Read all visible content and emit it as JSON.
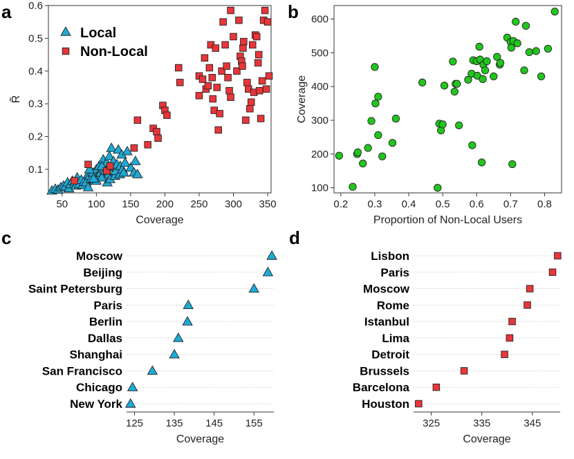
{
  "colors": {
    "local": "#1eaad6",
    "nonlocal": "#e8363a",
    "users": "#22c51e",
    "stroke": "#222222"
  },
  "chart_data": [
    {
      "panel": "a",
      "type": "scatter",
      "xlabel": "Coverage",
      "ylabel": "R̃",
      "xlim": [
        30,
        355
      ],
      "ylim": [
        0.028,
        0.6
      ],
      "xticks": [
        50,
        100,
        150,
        200,
        250,
        300,
        350
      ],
      "yticks": [
        0.1,
        0.2,
        0.3,
        0.4,
        0.5,
        0.6
      ],
      "legend_position": "top-left",
      "series": [
        {
          "name": "Local",
          "marker": "triangle",
          "points": [
            [
              35,
              0.035
            ],
            [
              40,
              0.04
            ],
            [
              44,
              0.038
            ],
            [
              48,
              0.045
            ],
            [
              52,
              0.05
            ],
            [
              55,
              0.048
            ],
            [
              58,
              0.06
            ],
            [
              60,
              0.042
            ],
            [
              62,
              0.055
            ],
            [
              65,
              0.065
            ],
            [
              68,
              0.06
            ],
            [
              70,
              0.05
            ],
            [
              72,
              0.075
            ],
            [
              75,
              0.055
            ],
            [
              78,
              0.068
            ],
            [
              80,
              0.052
            ],
            [
              82,
              0.062
            ],
            [
              85,
              0.06
            ],
            [
              88,
              0.085
            ],
            [
              90,
              0.08
            ],
            [
              92,
              0.07
            ],
            [
              95,
              0.09
            ],
            [
              97,
              0.065
            ],
            [
              100,
              0.1
            ],
            [
              102,
              0.08
            ],
            [
              104,
              0.11
            ],
            [
              106,
              0.09
            ],
            [
              108,
              0.075
            ],
            [
              110,
              0.13
            ],
            [
              111,
              0.1
            ],
            [
              113,
              0.095
            ],
            [
              115,
              0.12
            ],
            [
              116,
              0.06
            ],
            [
              118,
              0.085
            ],
            [
              119,
              0.14
            ],
            [
              120,
              0.07
            ],
            [
              122,
              0.165
            ],
            [
              124,
              0.105
            ],
            [
              125,
              0.125
            ],
            [
              127,
              0.08
            ],
            [
              128,
              0.095
            ],
            [
              130,
              0.115
            ],
            [
              132,
              0.16
            ],
            [
              134,
              0.085
            ],
            [
              135,
              0.11
            ],
            [
              137,
              0.145
            ],
            [
              138,
              0.1
            ],
            [
              140,
              0.09
            ],
            [
              142,
              0.12
            ],
            [
              145,
              0.155
            ],
            [
              150,
              0.105
            ],
            [
              155,
              0.09
            ],
            [
              157,
              0.125
            ],
            [
              160,
              0.085
            ],
            [
              88,
              0.045
            ],
            [
              90,
              0.1
            ],
            [
              100,
              0.065
            ],
            [
              108,
              0.11
            ],
            [
              118,
              0.108
            ],
            [
              96,
              0.072
            ]
          ]
        },
        {
          "name": "Non-Local",
          "marker": "square",
          "points": [
            [
              68,
              0.065
            ],
            [
              88,
              0.115
            ],
            [
              115,
              0.095
            ],
            [
              120,
              0.11
            ],
            [
              155,
              0.165
            ],
            [
              160,
              0.25
            ],
            [
              175,
              0.175
            ],
            [
              183,
              0.225
            ],
            [
              188,
              0.215
            ],
            [
              190,
              0.195
            ],
            [
              197,
              0.295
            ],
            [
              200,
              0.28
            ],
            [
              203,
              0.265
            ],
            [
              220,
              0.41
            ],
            [
              222,
              0.365
            ],
            [
              250,
              0.385
            ],
            [
              250,
              0.325
            ],
            [
              255,
              0.375
            ],
            [
              258,
              0.44
            ],
            [
              260,
              0.345
            ],
            [
              263,
              0.355
            ],
            [
              265,
              0.41
            ],
            [
              267,
              0.48
            ],
            [
              269,
              0.38
            ],
            [
              270,
              0.315
            ],
            [
              272,
              0.28
            ],
            [
              274,
              0.47
            ],
            [
              276,
              0.35
            ],
            [
              278,
              0.22
            ],
            [
              280,
              0.27
            ],
            [
              283,
              0.4
            ],
            [
              285,
              0.55
            ],
            [
              288,
              0.48
            ],
            [
              290,
              0.415
            ],
            [
              292,
              0.38
            ],
            [
              294,
              0.34
            ],
            [
              296,
              0.32
            ],
            [
              296,
              0.585
            ],
            [
              300,
              0.505
            ],
            [
              305,
              0.4
            ],
            [
              308,
              0.555
            ],
            [
              310,
              0.445
            ],
            [
              312,
              0.43
            ],
            [
              313,
              0.415
            ],
            [
              314,
              0.47
            ],
            [
              315,
              0.49
            ],
            [
              318,
              0.25
            ],
            [
              320,
              0.365
            ],
            [
              322,
              0.345
            ],
            [
              324,
              0.285
            ],
            [
              326,
              0.305
            ],
            [
              328,
              0.48
            ],
            [
              330,
              0.335
            ],
            [
              332,
              0.51
            ],
            [
              334,
              0.505
            ],
            [
              336,
              0.425
            ],
            [
              337,
              0.45
            ],
            [
              338,
              0.34
            ],
            [
              340,
              0.255
            ],
            [
              342,
              0.37
            ],
            [
              344,
              0.555
            ],
            [
              346,
              0.585
            ],
            [
              348,
              0.345
            ],
            [
              350,
              0.55
            ],
            [
              352,
              0.385
            ]
          ]
        }
      ]
    },
    {
      "panel": "b",
      "type": "scatter",
      "xlabel": "Proportion of Non-Local Users",
      "ylabel": "Coverage",
      "xlim": [
        0.18,
        0.85
      ],
      "ylim": [
        85,
        640
      ],
      "xticks": [
        0.2,
        0.3,
        0.4,
        0.5,
        0.6,
        0.7,
        0.8
      ],
      "yticks": [
        100,
        200,
        300,
        400,
        500,
        600
      ],
      "series": [
        {
          "name": "",
          "marker": "circle",
          "points": [
            [
              0.195,
              195
            ],
            [
              0.235,
              103
            ],
            [
              0.248,
              200
            ],
            [
              0.25,
              205
            ],
            [
              0.265,
              172
            ],
            [
              0.28,
              218
            ],
            [
              0.29,
              298
            ],
            [
              0.3,
              458
            ],
            [
              0.302,
              350
            ],
            [
              0.31,
              370
            ],
            [
              0.31,
              256
            ],
            [
              0.322,
              193
            ],
            [
              0.352,
              233
            ],
            [
              0.362,
              305
            ],
            [
              0.44,
              412
            ],
            [
              0.485,
              100
            ],
            [
              0.49,
              290
            ],
            [
              0.495,
              270
            ],
            [
              0.5,
              288
            ],
            [
              0.505,
              403
            ],
            [
              0.53,
              474
            ],
            [
              0.535,
              385
            ],
            [
              0.538,
              408
            ],
            [
              0.542,
              408
            ],
            [
              0.548,
              285
            ],
            [
              0.575,
              420
            ],
            [
              0.585,
              438
            ],
            [
              0.587,
              226
            ],
            [
              0.59,
              478
            ],
            [
              0.6,
              475
            ],
            [
              0.602,
              432
            ],
            [
              0.608,
              518
            ],
            [
              0.61,
              480
            ],
            [
              0.615,
              175
            ],
            [
              0.618,
              422
            ],
            [
              0.62,
              465
            ],
            [
              0.625,
              448
            ],
            [
              0.63,
              475
            ],
            [
              0.65,
              430
            ],
            [
              0.66,
              488
            ],
            [
              0.668,
              465
            ],
            [
              0.67,
              470
            ],
            [
              0.69,
              545
            ],
            [
              0.7,
              532
            ],
            [
              0.702,
              515
            ],
            [
              0.705,
              170
            ],
            [
              0.708,
              535
            ],
            [
              0.715,
              592
            ],
            [
              0.72,
              528
            ],
            [
              0.74,
              448
            ],
            [
              0.745,
              580
            ],
            [
              0.755,
              502
            ],
            [
              0.775,
              505
            ],
            [
              0.79,
              430
            ],
            [
              0.81,
              512
            ],
            [
              0.83,
              622
            ]
          ]
        }
      ]
    },
    {
      "panel": "c",
      "type": "dot",
      "xlabel": "Coverage",
      "xlim": [
        123,
        160
      ],
      "xticks": [
        125,
        135,
        145,
        155
      ],
      "series": [
        {
          "name": "Local",
          "marker": "triangle",
          "categories": [
            "Moscow",
            "Beijing",
            "Saint Petersburg",
            "Paris",
            "Berlin",
            "Dallas",
            "Shanghai",
            "San Francisco",
            "Chicago",
            "New York"
          ],
          "values": [
            159.5,
            158.5,
            155,
            138.5,
            138.3,
            136,
            135,
            129.5,
            124.5,
            124
          ]
        }
      ]
    },
    {
      "panel": "d",
      "type": "dot",
      "xlabel": "Coverage",
      "xlim": [
        321.5,
        350.5
      ],
      "xticks": [
        325,
        335,
        345
      ],
      "series": [
        {
          "name": "Non-Local",
          "marker": "square",
          "categories": [
            "Lisbon",
            "Paris",
            "Moscow",
            "Rome",
            "Istanbul",
            "Lima",
            "Detroit",
            "Brussels",
            "Barcelona",
            "Houston"
          ],
          "values": [
            350,
            349,
            344.5,
            344,
            341,
            340.5,
            339.5,
            331.5,
            326,
            322.5
          ]
        }
      ]
    }
  ]
}
